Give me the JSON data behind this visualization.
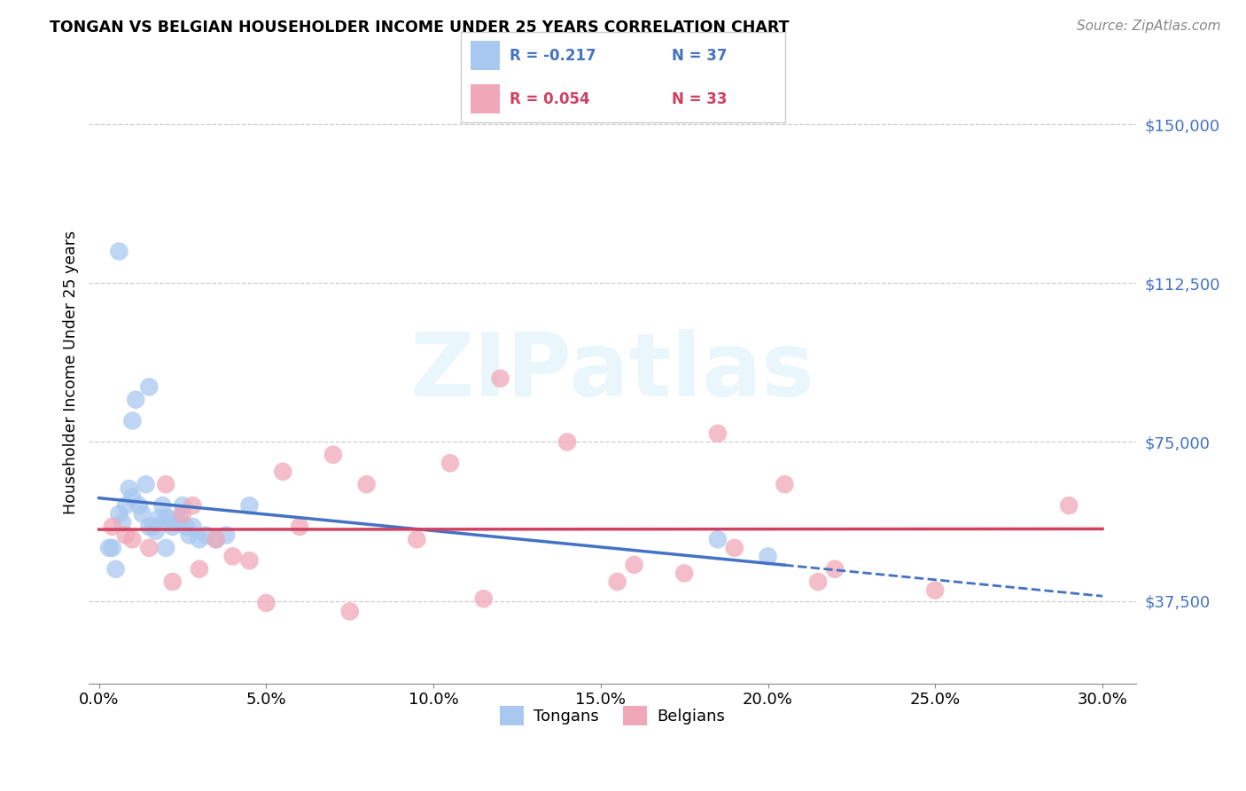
{
  "title": "TONGAN VS BELGIAN HOUSEHOLDER INCOME UNDER 25 YEARS CORRELATION CHART",
  "source": "Source: ZipAtlas.com",
  "ylabel": "Householder Income Under 25 years",
  "xlabel_ticks": [
    "0.0%",
    "5.0%",
    "10.0%",
    "15.0%",
    "20.0%",
    "25.0%",
    "30.0%"
  ],
  "xlabel_vals": [
    0.0,
    5.0,
    10.0,
    15.0,
    20.0,
    25.0,
    30.0
  ],
  "ytick_labels": [
    "$37,500",
    "$75,000",
    "$112,500",
    "$150,000"
  ],
  "ytick_vals": [
    37500,
    75000,
    112500,
    150000
  ],
  "ylim": [
    18000,
    165000
  ],
  "xlim": [
    -0.3,
    31.0
  ],
  "legend_R_tongan": "-0.217",
  "legend_N_tongan": "37",
  "legend_R_belgian": "0.054",
  "legend_N_belgian": "33",
  "tongan_color": "#A8C8F0",
  "belgian_color": "#F0A8B8",
  "trendline_tongan_color": "#4472C4",
  "trendline_belgian_color": "#D04060",
  "watermark_text": "ZIPatlas",
  "tongan_x": [
    0.3,
    0.5,
    0.6,
    0.7,
    0.8,
    0.9,
    1.0,
    1.0,
    1.1,
    1.2,
    1.3,
    1.4,
    1.5,
    1.5,
    1.6,
    1.7,
    1.8,
    1.9,
    2.0,
    2.0,
    2.1,
    2.2,
    2.3,
    2.4,
    2.5,
    2.6,
    2.7,
    2.8,
    3.0,
    3.2,
    3.5,
    3.8,
    4.5,
    0.4,
    0.6,
    18.5,
    20.0
  ],
  "tongan_y": [
    50000,
    45000,
    58000,
    56000,
    60000,
    64000,
    62000,
    80000,
    85000,
    60000,
    58000,
    65000,
    55000,
    88000,
    55000,
    54000,
    57000,
    60000,
    57000,
    50000,
    57000,
    55000,
    56000,
    57000,
    60000,
    55000,
    53000,
    55000,
    52000,
    53000,
    52000,
    53000,
    60000,
    50000,
    120000,
    52000,
    48000
  ],
  "belgian_x": [
    0.4,
    0.8,
    1.0,
    1.5,
    2.0,
    2.5,
    2.8,
    3.5,
    4.0,
    4.5,
    5.5,
    6.0,
    7.0,
    8.0,
    9.5,
    10.5,
    12.0,
    14.0,
    16.0,
    17.5,
    19.0,
    20.5,
    22.0,
    25.0,
    29.0,
    2.2,
    3.0,
    5.0,
    7.5,
    11.5,
    15.5,
    18.5,
    21.5
  ],
  "belgian_y": [
    55000,
    53000,
    52000,
    50000,
    65000,
    58000,
    60000,
    52000,
    48000,
    47000,
    68000,
    55000,
    72000,
    65000,
    52000,
    70000,
    90000,
    75000,
    46000,
    44000,
    50000,
    65000,
    45000,
    40000,
    60000,
    42000,
    45000,
    37000,
    35000,
    38000,
    42000,
    77000,
    42000
  ],
  "trendline_tongan_start_x": 0.0,
  "trendline_tongan_solid_end_x": 20.5,
  "trendline_tongan_end_x": 30.0,
  "trendline_belgian_start_x": 0.0,
  "trendline_belgian_end_x": 30.0
}
